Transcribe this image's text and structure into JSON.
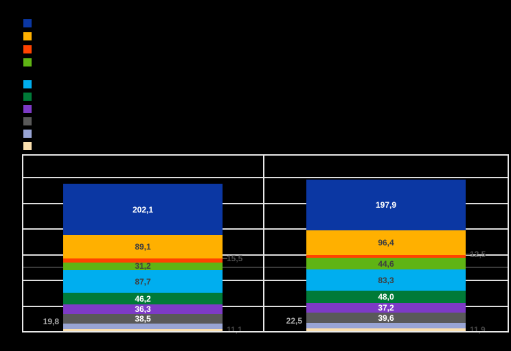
{
  "chart_data": {
    "type": "bar",
    "stacked": true,
    "orientation": "vertical",
    "title": "",
    "xlabel": "",
    "ylabel": "",
    "categories": [
      "",
      ""
    ],
    "series": [
      {
        "name": "",
        "color": "#0B37A3",
        "values": [
          202.1,
          197.9
        ],
        "labels": [
          "202,1",
          "197,9"
        ],
        "label_placement": "inside",
        "label_color": "#FFFFFF"
      },
      {
        "name": "",
        "color": "#FFB000",
        "values": [
          89.1,
          96.4
        ],
        "labels": [
          "89,1",
          "96,4"
        ],
        "label_placement": "inside",
        "label_color": "#3F3F3F"
      },
      {
        "name": "",
        "color": "#FF4300",
        "values": [
          15.5,
          12.5
        ],
        "labels": [
          "15,5",
          "12,5"
        ],
        "label_placement": "outside-right",
        "label_color": "#4D4D4D"
      },
      {
        "name": "",
        "color": "#5FB414",
        "values": [
          31.2,
          44.6
        ],
        "labels": [
          "31,2",
          "44,6"
        ],
        "label_placement": "inside",
        "label_color": "#3F3F3F"
      },
      {
        "name": "",
        "color": "#00AEEF",
        "values": [
          87.7,
          83.3
        ],
        "labels": [
          "87,7",
          "83,3"
        ],
        "label_placement": "inside",
        "label_color": "#3F3F3F"
      },
      {
        "name": "",
        "color": "#007A38",
        "values": [
          46.2,
          48.0
        ],
        "labels": [
          "46,2",
          "48,0"
        ],
        "label_placement": "inside",
        "label_color": "#FFFFFF"
      },
      {
        "name": "",
        "color": "#7D3AC6",
        "values": [
          36.3,
          37.2
        ],
        "labels": [
          "36,3",
          "37,2"
        ],
        "label_placement": "inside",
        "label_color": "#FFFFFF"
      },
      {
        "name": "",
        "color": "#595959",
        "values": [
          38.5,
          39.6
        ],
        "labels": [
          "38,5",
          "39,6"
        ],
        "label_placement": "inside",
        "label_color": "#FFFFFF"
      },
      {
        "name": "",
        "color": "#98A4D4",
        "values": [
          19.8,
          22.5
        ],
        "labels": [
          "19,8",
          "22,5"
        ],
        "label_placement": "outside-left",
        "label_color": "#ABABAB"
      },
      {
        "name": "",
        "color": "#FADFAE",
        "values": [
          11.1,
          11.9
        ],
        "labels": [
          "11,1",
          "11,9"
        ],
        "label_placement": "outside-right",
        "label_color": "#474747"
      }
    ],
    "value_axis": {
      "min": 0,
      "max": 690,
      "major_unit": 100,
      "tick_labels_visible": false
    },
    "category_labels_visible": false,
    "grid": true,
    "gridline_color": "#DEDEDE",
    "background_color": "#000000",
    "reference_line": {
      "type": "horizontal",
      "approx_value": 250,
      "color": "#3A3A3A",
      "label_visible": false
    },
    "legend_position": "top-left",
    "legend_labels_visible": false
  },
  "legend": {
    "groups": [
      [
        "#0B37A3",
        "#FFB000",
        "#FF4300",
        "#5FB414"
      ],
      [
        "#00AEEF",
        "#007A38",
        "#7D3AC6",
        "#595959",
        "#98A4D4",
        "#FADFAE"
      ]
    ]
  }
}
